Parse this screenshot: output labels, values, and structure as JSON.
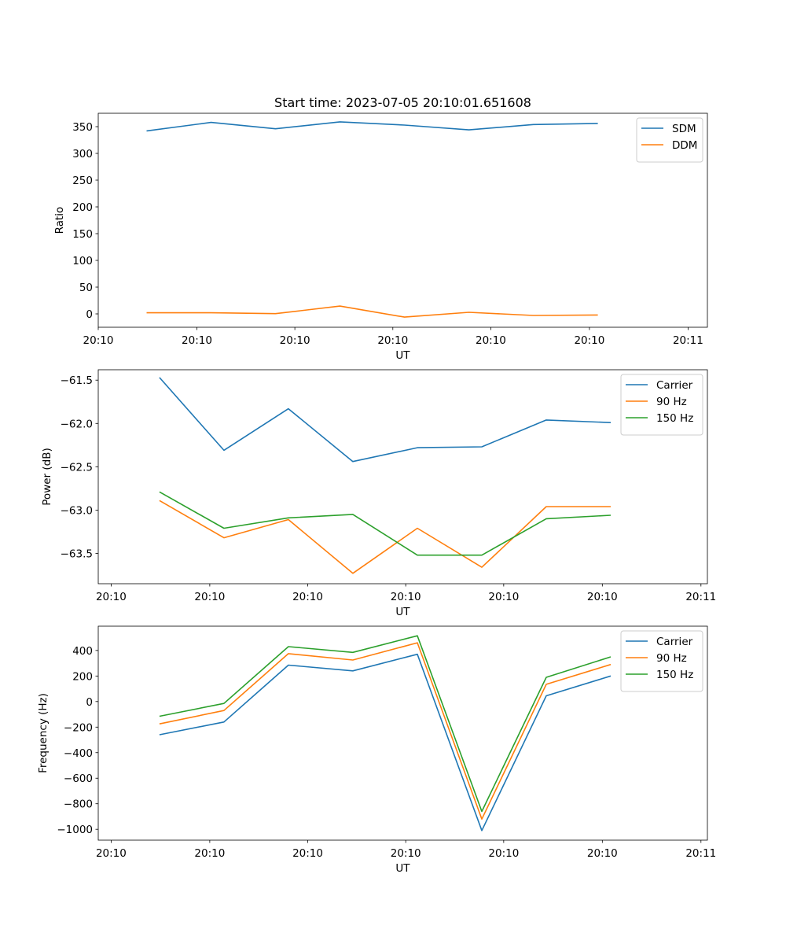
{
  "figure_title": "Start time: 2023-07-05 20:10:01.651608",
  "colors": {
    "blue": "#1f77b4",
    "orange": "#ff7f0e",
    "green": "#2ca02c"
  },
  "chart_data": [
    {
      "type": "line",
      "xlabel": "UT",
      "ylabel": "Ratio",
      "xtick_labels": [
        "20:10",
        "20:10",
        "20:10",
        "20:10",
        "20:10",
        "20:10",
        "20:11"
      ],
      "x": [
        0,
        1,
        2,
        3,
        4,
        5,
        6,
        7
      ],
      "xlim": [
        -0.75,
        8.7
      ],
      "ylim": [
        -25,
        375
      ],
      "yticks": [
        0,
        50,
        100,
        150,
        200,
        250,
        300,
        350
      ],
      "legend": "upper-right",
      "series": [
        {
          "name": "SDM",
          "color": "#1f77b4",
          "values": [
            342,
            358,
            346,
            359,
            353,
            344,
            354,
            356
          ]
        },
        {
          "name": "DDM",
          "color": "#ff7f0e",
          "values": [
            2,
            2,
            0.5,
            14.5,
            -6,
            3,
            -3,
            -2
          ]
        }
      ]
    },
    {
      "type": "line",
      "xlabel": "UT",
      "ylabel": "Power (dB)",
      "xtick_labels": [
        "20:10",
        "20:10",
        "20:10",
        "20:10",
        "20:10",
        "20:10",
        "20:11"
      ],
      "x": [
        0,
        1,
        2,
        3,
        4,
        5,
        6,
        7
      ],
      "xlim": [
        -0.95,
        8.5
      ],
      "ylim": [
        -63.85,
        -61.38
      ],
      "yticks": [
        -63.5,
        -63.0,
        -62.5,
        -62.0,
        -61.5
      ],
      "ytick_labels": [
        "−63.5",
        "−63.0",
        "−62.5",
        "−62.0",
        "−61.5"
      ],
      "legend": "upper-right",
      "series": [
        {
          "name": "Carrier",
          "color": "#1f77b4",
          "values": [
            -61.47,
            -62.31,
            -61.83,
            -62.44,
            -62.28,
            -62.27,
            -61.96,
            -61.99
          ]
        },
        {
          "name": "90 Hz",
          "color": "#ff7f0e",
          "values": [
            -62.89,
            -63.32,
            -63.11,
            -63.73,
            -63.21,
            -63.66,
            -62.96,
            -62.96
          ]
        },
        {
          "name": "150 Hz",
          "color": "#2ca02c",
          "values": [
            -62.79,
            -63.21,
            -63.09,
            -63.05,
            -63.52,
            -63.52,
            -63.1,
            -63.06
          ]
        }
      ]
    },
    {
      "type": "line",
      "xlabel": "UT",
      "ylabel": "Frequency (Hz)",
      "xtick_labels": [
        "20:10",
        "20:10",
        "20:10",
        "20:10",
        "20:10",
        "20:10",
        "20:11"
      ],
      "x": [
        0,
        1,
        2,
        3,
        4,
        5,
        6,
        7
      ],
      "xlim": [
        -0.95,
        8.5
      ],
      "ylim": [
        -1085,
        590
      ],
      "yticks": [
        -1000,
        -800,
        -600,
        -400,
        -200,
        0,
        200,
        400
      ],
      "ytick_labels": [
        "−1000",
        "−800",
        "−600",
        "−400",
        "−200",
        "0",
        "200",
        "400"
      ],
      "legend": "upper-right",
      "series": [
        {
          "name": "Carrier",
          "color": "#1f77b4",
          "values": [
            -260,
            -160,
            285,
            240,
            370,
            -1010,
            45,
            200
          ]
        },
        {
          "name": "90 Hz",
          "color": "#ff7f0e",
          "values": [
            -175,
            -70,
            375,
            325,
            460,
            -920,
            135,
            290
          ]
        },
        {
          "name": "150 Hz",
          "color": "#2ca02c",
          "values": [
            -115,
            -15,
            430,
            385,
            515,
            -860,
            190,
            350
          ]
        }
      ]
    }
  ]
}
